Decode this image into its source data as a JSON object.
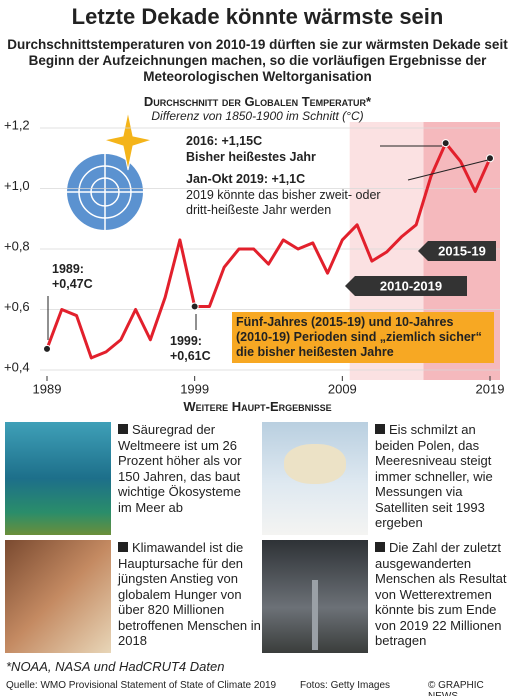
{
  "headline": "Letzte Dekade könnte wärmste sein",
  "subtitle": "Durchschnittstemperaturen von 2010-19 dürften sie zur wärmsten Dekade seit Beginn der Aufzeichnungen machen, so die vorläufigen Ergebnisse der Meteorologischen Weltorganisation",
  "chart_data": {
    "type": "line",
    "title": "Durchschnitt der Globalen Temperatur*",
    "subtitle": "Differenz von 1850-1900 im Schnitt (°C)",
    "x": [
      1989,
      1990,
      1991,
      1992,
      1993,
      1994,
      1995,
      1996,
      1997,
      1998,
      1999,
      2000,
      2001,
      2002,
      2003,
      2004,
      2005,
      2006,
      2007,
      2008,
      2009,
      2010,
      2011,
      2012,
      2013,
      2014,
      2015,
      2016,
      2017,
      2018,
      2019
    ],
    "values": [
      0.47,
      0.6,
      0.58,
      0.44,
      0.46,
      0.5,
      0.6,
      0.5,
      0.64,
      0.83,
      0.61,
      0.61,
      0.74,
      0.8,
      0.8,
      0.75,
      0.83,
      0.8,
      0.82,
      0.72,
      0.83,
      0.88,
      0.76,
      0.79,
      0.84,
      0.88,
      1.04,
      1.15,
      1.09,
      0.99,
      1.1
    ],
    "color": "#e2202c",
    "xlim": [
      1989,
      2019
    ],
    "ylim": [
      0.4,
      1.2
    ],
    "xticks": [
      1989,
      1999,
      2009,
      2019
    ],
    "yticks": [
      {
        "value": 0.4,
        "label": "+0,4"
      },
      {
        "value": 0.6,
        "label": "+0,6"
      },
      {
        "value": 0.8,
        "label": "+0,8"
      },
      {
        "value": 1.0,
        "label": "+1,0"
      },
      {
        "value": 1.2,
        "label": "+1,2"
      }
    ],
    "grid": true,
    "periods": [
      {
        "label": "2010-2019",
        "from": 2010,
        "to": 2019,
        "color": "#fbe1e2"
      },
      {
        "label": "2015-19",
        "from": 2015,
        "to": 2019,
        "color": "#f5b9bd"
      }
    ],
    "annotations": [
      "1989: +0,47C",
      "1999: +0,61C",
      "2016: +1,15C",
      "Bisher heißestes Jahr",
      "Jan-Okt 2019: +1,1C",
      "2019 könnte das bisher zweit- oder dritt-heißeste Jahr werden",
      "Fünf-Jahres (2015-19) und 10-Jahres (2010-19) Perioden sind „ziemlich sicher“ die bisher heißesten Jahre"
    ],
    "footnote": "*NOAA, NASA und HadCRUT4 Daten"
  },
  "findings": {
    "title": "Weitere Haupt-Ergebnisse",
    "items": [
      "Säuregrad der Weltmeere ist um 26 Prozent höher als vor 150 Jahren, das baut wichtige Ökosysteme im Meer ab",
      "Eis schmilzt an beiden Polen, das Meeresniveau steigt immer schneller, wie Messungen via Satelliten seit 1993 ergeben",
      "Klimawandel ist die Hauptursache für den jüngsten Anstieg von globalem Hunger von über 820 Millionen betroffenen Menschen in 2018",
      "Die Zahl der zuletzt ausgewanderten Menschen als Resultat von Wetterextremen könnte bis zum Ende von 2019 22 Millionen betragen"
    ]
  },
  "footer": {
    "source": "Quelle: WMO Provisional Statement of State of Climate 2019",
    "photos": "Fotos: Getty Images",
    "credit": "© GRAPHIC NEWS"
  }
}
